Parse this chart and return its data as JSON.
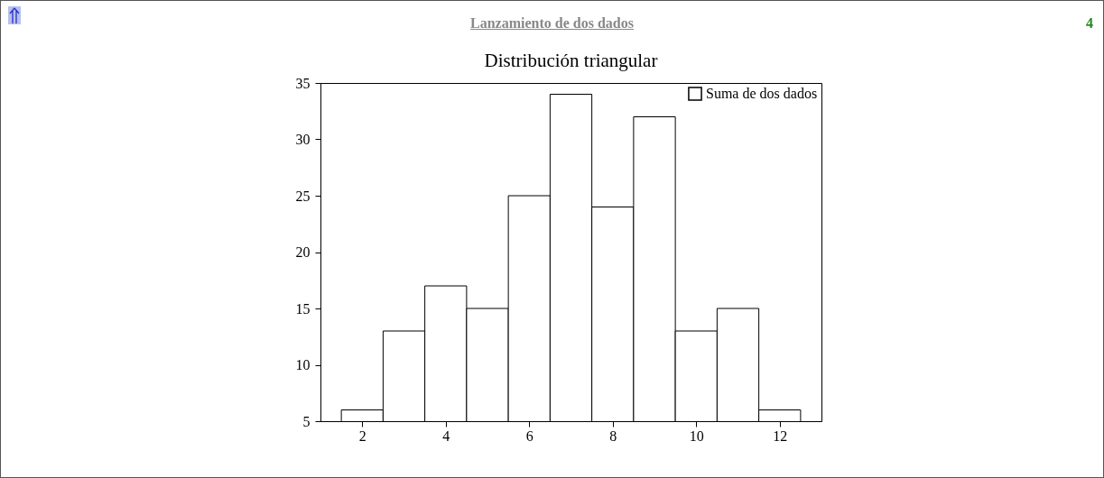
{
  "chart_data": {
    "type": "histogram",
    "title": "Lanzamiento de dos dados",
    "subtitle": "Distribución triangular",
    "annotations": [
      "4"
    ],
    "bins": [
      1.5,
      2.5,
      3.5,
      4.5,
      5.5,
      6.5,
      7.5,
      8.5,
      9.5,
      10.5,
      11.5,
      12.5
    ],
    "series": [
      {
        "name": "Suma de dos dados",
        "color": "#ffffff",
        "values": [
          6,
          13,
          17,
          15,
          25,
          34,
          24,
          32,
          13,
          15,
          6
        ]
      }
    ],
    "xlim": [
      1,
      13
    ],
    "xticks": [
      2,
      4,
      6,
      8,
      10,
      12
    ],
    "ylim": [
      5,
      35
    ],
    "yticks": [
      5,
      10,
      15,
      20,
      25,
      30,
      35
    ],
    "grid": false,
    "legend": "top right"
  }
}
